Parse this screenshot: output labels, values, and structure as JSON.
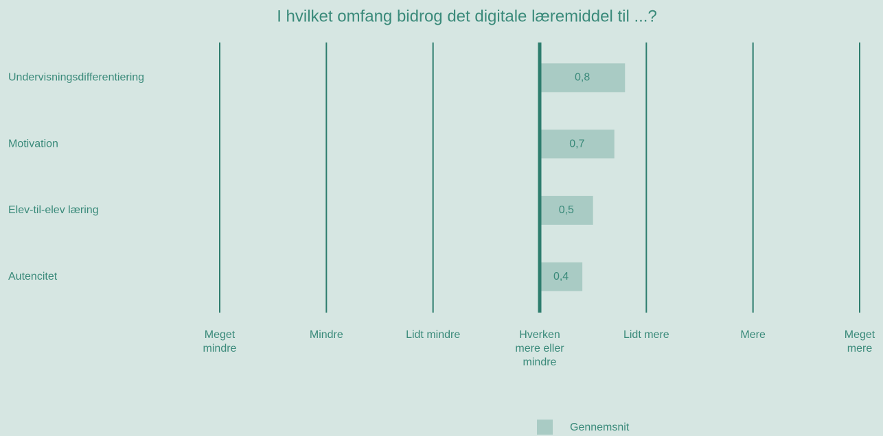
{
  "chart_data": {
    "type": "bar",
    "orientation": "horizontal",
    "title": "I hvilket omfang bidrog det digitale læremiddel til ...?",
    "categories": [
      "Undervisningsdifferentiering",
      "Motivation",
      "Elev-til-elev læring",
      "Autencitet"
    ],
    "series": [
      {
        "name": "Gennemsnit",
        "color": "#a9cbc4",
        "values": [
          0.8,
          0.7,
          0.5,
          0.4
        ],
        "value_labels": [
          "0,8",
          "0,7",
          "0,5",
          "0,4"
        ]
      }
    ],
    "xlim": [
      -3,
      3
    ],
    "xticks": [
      {
        "value": -3,
        "label": "Meget mindre"
      },
      {
        "value": -2,
        "label": "Mindre"
      },
      {
        "value": -1,
        "label": "Lidt mindre"
      },
      {
        "value": 0,
        "label": "Hverken mere eller mindre"
      },
      {
        "value": 1,
        "label": "Lidt mere"
      },
      {
        "value": 2,
        "label": "Mere"
      },
      {
        "value": 3,
        "label": "Meget mere"
      }
    ],
    "grid": true,
    "legend": "bottom"
  }
}
